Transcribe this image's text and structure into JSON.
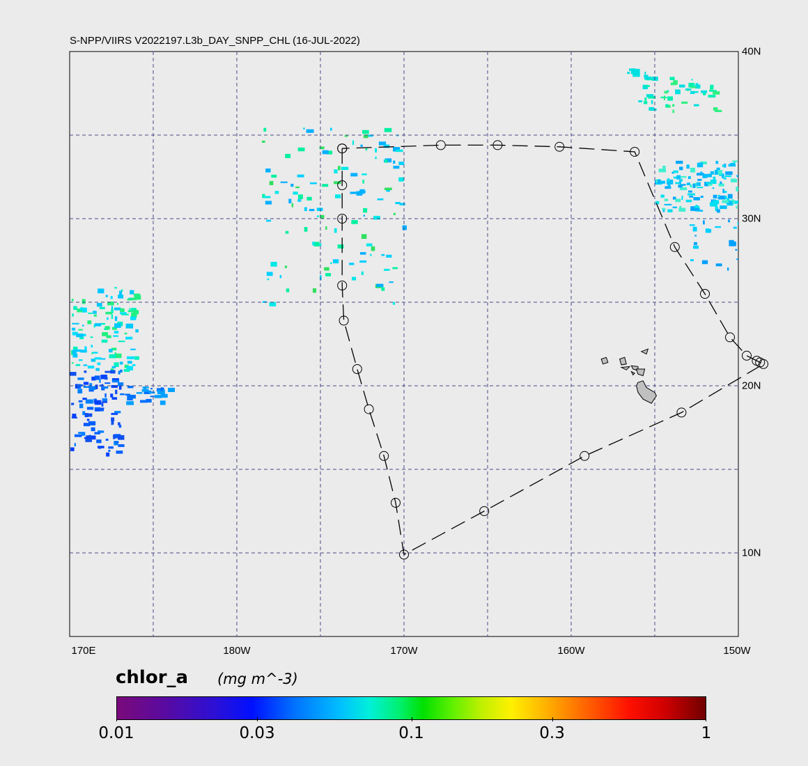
{
  "title": "S-NPP/VIIRS V2022197.L3b_DAY_SNPP_CHL (16-JUL-2022)",
  "map": {
    "lon_ticks": [
      "170E",
      "180W",
      "170W",
      "160W",
      "150W"
    ],
    "lat_ticks": [
      "40N",
      "30N",
      "20N",
      "10N"
    ],
    "extent": {
      "lon_min": 170,
      "lon_max": 210,
      "lat_min": 5,
      "lat_max": 40
    },
    "grid_spacing_deg": 5,
    "track_points": [
      [
        186.3,
        34.2
      ],
      [
        186.3,
        32.0
      ],
      [
        186.3,
        30.0
      ],
      [
        186.3,
        26.0
      ],
      [
        186.4,
        23.9
      ],
      [
        187.2,
        21.0
      ],
      [
        187.9,
        18.6
      ],
      [
        188.8,
        15.8
      ],
      [
        189.5,
        13.0
      ],
      [
        190.0,
        9.9
      ],
      [
        194.8,
        12.5
      ],
      [
        200.8,
        15.8
      ],
      [
        206.6,
        18.4
      ],
      [
        211.5,
        21.3
      ],
      [
        211.3,
        21.4
      ],
      [
        211.1,
        21.5
      ],
      [
        210.5,
        21.8
      ],
      [
        209.5,
        22.9
      ],
      [
        208.0,
        25.5
      ],
      [
        206.2,
        28.3
      ],
      [
        203.8,
        34.0
      ],
      [
        199.3,
        34.3
      ],
      [
        195.6,
        34.4
      ],
      [
        192.2,
        34.4
      ],
      [
        186.3,
        34.2
      ]
    ],
    "land_color": "#c0c0c0",
    "ocean_color": "#ebebeb",
    "grid_color": "#4a4a8a"
  },
  "colorbar": {
    "variable": "chlor_a",
    "units": "(mg m^-3)",
    "scale": "log",
    "min": 0.01,
    "max": 1,
    "tick_labels": [
      "0.01",
      "0.03",
      "0.1",
      "0.3",
      "1"
    ],
    "tick_values": [
      0.01,
      0.03,
      0.1,
      0.3,
      1
    ]
  }
}
